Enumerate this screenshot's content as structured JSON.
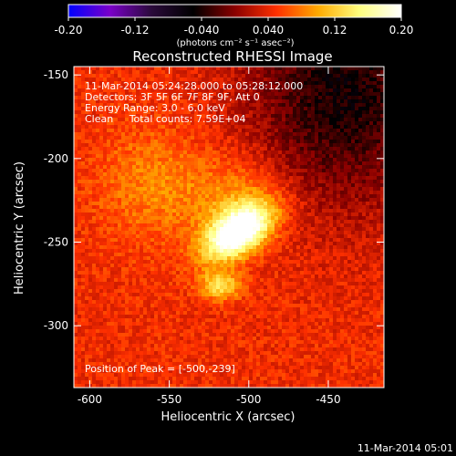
{
  "chart_data": {
    "type": "heatmap",
    "title": "Reconstructed RHESSI Image",
    "xlabel": "Heliocentric X (arcsec)",
    "ylabel": "Heliocentric Y (arcsec)",
    "xlim": [
      -610,
      -415
    ],
    "ylim": [
      -337,
      -145
    ],
    "x_ticks": [
      "-600",
      "-550",
      "-500",
      "-450"
    ],
    "x_tick_values": [
      -600,
      -550,
      -500,
      -450
    ],
    "y_ticks": [
      "-150",
      "-200",
      "-250",
      "-300"
    ],
    "y_tick_values": [
      -150,
      -200,
      -250,
      -300
    ],
    "colorbar": {
      "range": [
        -0.2,
        0.2
      ],
      "tick_labels": [
        "-0.20",
        "-0.12",
        "-0.040",
        "0.040",
        "0.12",
        "0.20"
      ],
      "tick_values": [
        -0.2,
        -0.12,
        -0.04,
        0.04,
        0.12,
        0.2
      ],
      "unit_label": "(photons cm⁻² s⁻¹ asec⁻²)",
      "colormap": [
        "#0000ff",
        "#7a00c8",
        "#2a0a3a",
        "#000000",
        "#8a0000",
        "#ff3000",
        "#ffaa00",
        "#ffff80",
        "#ffffff"
      ]
    },
    "annotations": [
      "11-Mar-2014 05:24:28.000 to 05:28:12.000",
      "Detectors: 3F 5F 6F 7F 8F 9F, Att 0",
      "Energy Range: 3.0 - 6.0 keV",
      "Clean     Total counts: 7.59E+04",
      "Position of Peak = [-500,-239]"
    ],
    "peak_position": [
      -500,
      -239
    ],
    "sources": [
      {
        "x": -507,
        "y": -244,
        "intensity": 0.19,
        "sigma_x": 16,
        "sigma_y": 9,
        "angle_deg": 32
      },
      {
        "x": -518,
        "y": -276,
        "intensity": 0.09,
        "sigma_x": 9,
        "sigma_y": 6,
        "angle_deg": 0
      },
      {
        "x": -505,
        "y": -225,
        "intensity": 0.05,
        "sigma_x": 22,
        "sigma_y": 18,
        "angle_deg": 0
      },
      {
        "x": -560,
        "y": -215,
        "intensity": 0.04,
        "sigma_x": 25,
        "sigma_y": 25,
        "angle_deg": 0
      }
    ],
    "background_level": 0.045,
    "grid": false,
    "legend": "none"
  },
  "footer_timestamp": "11-Mar-2014 05:01"
}
